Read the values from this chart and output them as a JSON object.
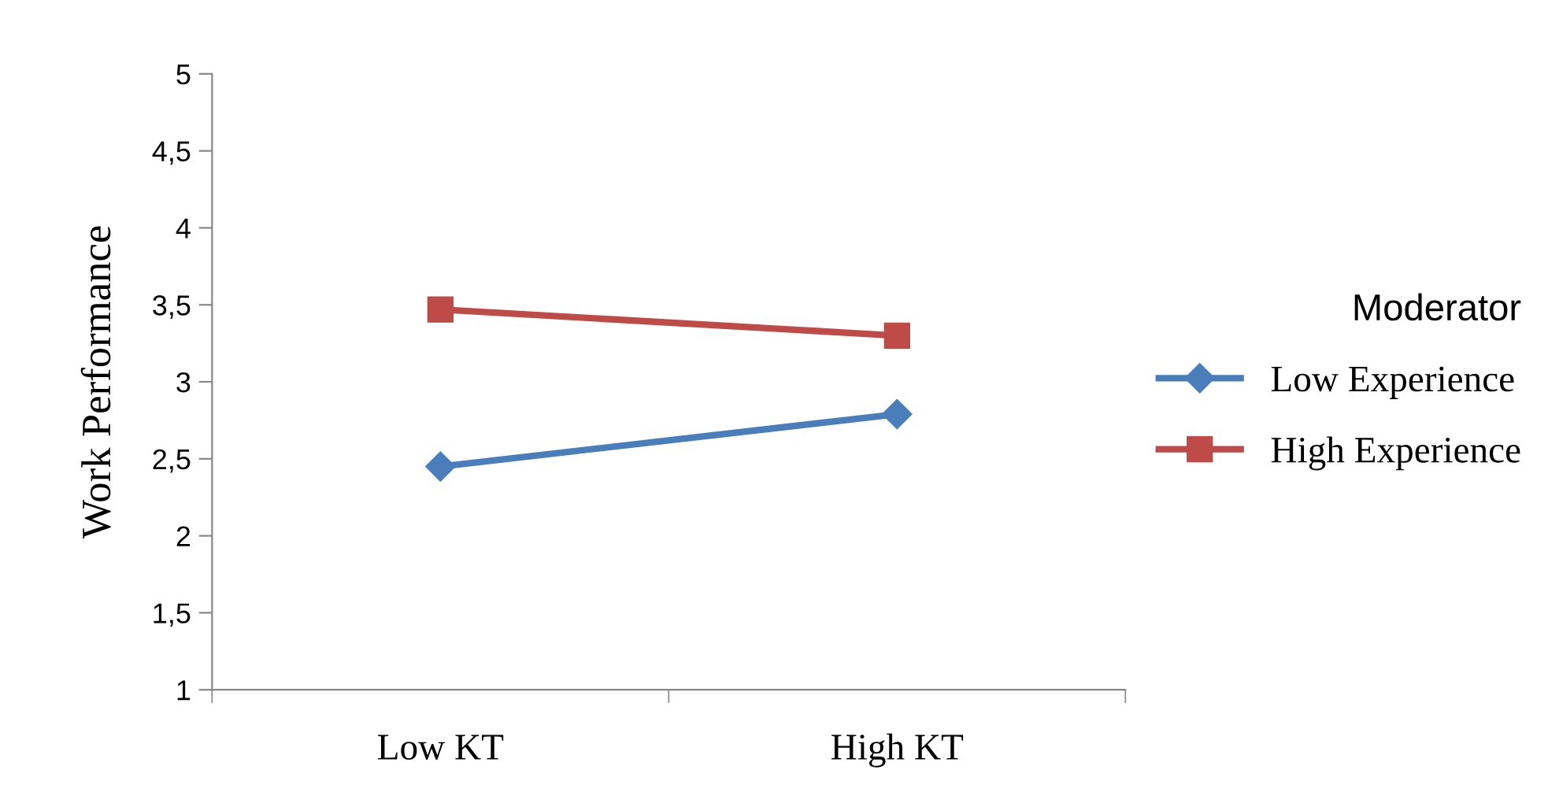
{
  "chart_data": {
    "type": "line",
    "ylabel": "Work Performance",
    "legend_title": "Moderator",
    "categories": [
      "Low KT",
      "High KT"
    ],
    "series": [
      {
        "name": "Low Experience",
        "color": "#4a7ebb",
        "values": [
          2.45,
          2.79
        ],
        "marker": "diamond"
      },
      {
        "name": "High Experience",
        "color": "#be4b48",
        "values": [
          3.47,
          3.3
        ],
        "marker": "square"
      }
    ],
    "ylim": [
      1,
      5
    ],
    "yticks": [
      1,
      {
        "value": 1.5,
        "label": "1,5"
      },
      2,
      {
        "value": 2.5,
        "label": "2,5"
      },
      3,
      {
        "value": 3.5,
        "label": "3,5"
      },
      4,
      {
        "value": 4.5,
        "label": "4,5"
      },
      5
    ],
    "grid": false,
    "legend": "right",
    "line_style": "solid"
  }
}
